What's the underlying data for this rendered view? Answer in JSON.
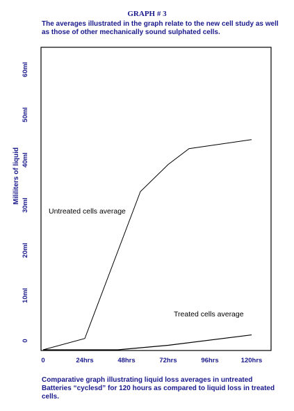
{
  "page": {
    "title": "GRAPH # 3",
    "subtitle": "The averages illustrated in the graph relate to the new cell study as well as those of other mechanically sound sulphated cells.",
    "caption": "Comparative graph illustrating liquid loss averages in untreated Batteries “cyclesd” for 120 hours as compared to liquid loss in treated cells."
  },
  "colors": {
    "text": "#1a1a8c",
    "line": "#000000",
    "frame": "#000000"
  },
  "chart_data": {
    "type": "line",
    "title": "GRAPH # 3",
    "ylabel": "Mililiters of liquid",
    "xlabel": "",
    "x": [
      0,
      24,
      48,
      72,
      96,
      120
    ],
    "x_tick_labels": [
      "0",
      "24hrs",
      "48hrs",
      "72hrs",
      "96hrs",
      "120hrs"
    ],
    "y_ticks": [
      0,
      10,
      20,
      30,
      40,
      50,
      60
    ],
    "y_tick_labels": [
      "0",
      "10ml",
      "20ml",
      "30ml",
      "40ml",
      "50ml",
      "60ml"
    ],
    "xlim": [
      0,
      120
    ],
    "ylim": [
      -2,
      65
    ],
    "grid": false,
    "series": [
      {
        "name": "Untreated cells average",
        "points": [
          [
            0,
            -2
          ],
          [
            24,
            0.5
          ],
          [
            56,
            33
          ],
          [
            72,
            39
          ],
          [
            84,
            42.5
          ],
          [
            120,
            44.5
          ]
        ]
      },
      {
        "name": "Treated cells average",
        "points": [
          [
            0,
            -2
          ],
          [
            43,
            -2
          ],
          [
            72,
            -1
          ],
          [
            120,
            1.3
          ]
        ]
      }
    ]
  }
}
